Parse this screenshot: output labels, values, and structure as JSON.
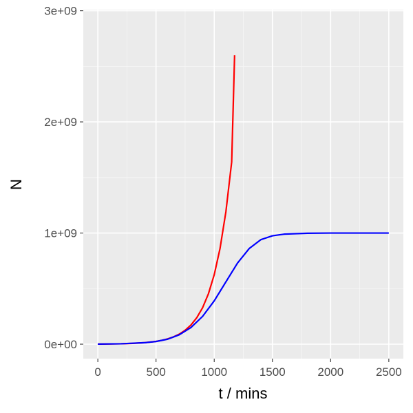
{
  "chart_data": {
    "type": "line",
    "title": "",
    "xlabel": "t / mins",
    "ylabel": "N",
    "xlim": [
      -125,
      2625
    ],
    "ylim": [
      -130000000,
      3010000000
    ],
    "x_ticks": [
      0,
      500,
      1000,
      1500,
      2000,
      2500
    ],
    "x_tick_labels": [
      "0",
      "500",
      "1000",
      "1500",
      "2000",
      "2500"
    ],
    "y_ticks": [
      0,
      1000000000,
      2000000000,
      3000000000
    ],
    "y_tick_labels": [
      "0e+00",
      "1e+09",
      "2e+09",
      "3e+09"
    ],
    "grid": true,
    "legend": "none",
    "series": [
      {
        "color": "#ff0000",
        "x": [
          0,
          100,
          200,
          300,
          400,
          500,
          550,
          600,
          650,
          700,
          750,
          800,
          850,
          900,
          950,
          1000,
          1050,
          1100,
          1150,
          1175
        ],
        "y": [
          1000000,
          1900000,
          3600000,
          6900000,
          13100000,
          25000000,
          34500000,
          47500000,
          65500000,
          90500000,
          125000000,
          172000000,
          238000000,
          328000000,
          453000000,
          625000000,
          862000000,
          1190000000,
          1640000000,
          2600000000
        ]
      },
      {
        "color": "#0000ff",
        "x": [
          0,
          200,
          400,
          500,
          600,
          700,
          800,
          900,
          1000,
          1100,
          1200,
          1300,
          1400,
          1500,
          1600,
          1800,
          2000,
          2250,
          2500
        ],
        "y": [
          1000000,
          3600000,
          13000000,
          24000000,
          45000000,
          85000000,
          150000000,
          250000000,
          390000000,
          560000000,
          730000000,
          860000000,
          940000000,
          975000000,
          990000000,
          998000000,
          1000000000,
          1000000000,
          1000000000
        ]
      }
    ]
  }
}
